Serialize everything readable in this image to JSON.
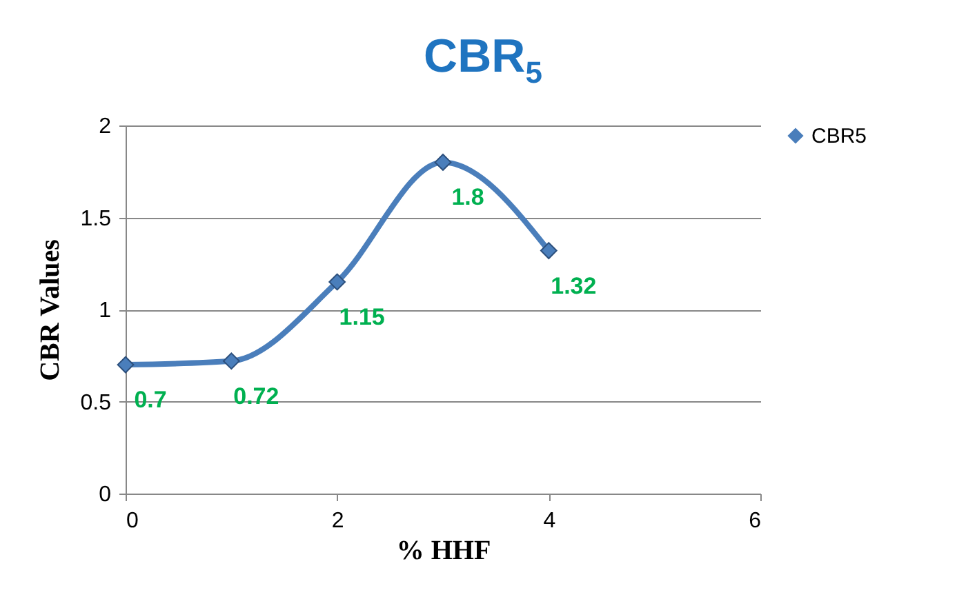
{
  "chart_data": {
    "type": "line",
    "title": "CBR$_{5}$",
    "xlabel": "% HHF",
    "ylabel": "CBR Values",
    "x": [
      0,
      1,
      2,
      3,
      4
    ],
    "series": [
      {
        "name": "CBR5",
        "color": "#4a7ebb",
        "values": [
          0.7,
          0.72,
          1.15,
          1.8,
          1.32
        ]
      }
    ],
    "xlim": [
      0,
      6
    ],
    "xticks": [
      0,
      2,
      4,
      6
    ],
    "ylim": [
      0,
      2
    ],
    "yticks": [
      0,
      0.5,
      1,
      1.5,
      2
    ],
    "grid": "y",
    "legend": "right",
    "marker": "diamond",
    "line_style": "solid",
    "data_labels": true
  }
}
